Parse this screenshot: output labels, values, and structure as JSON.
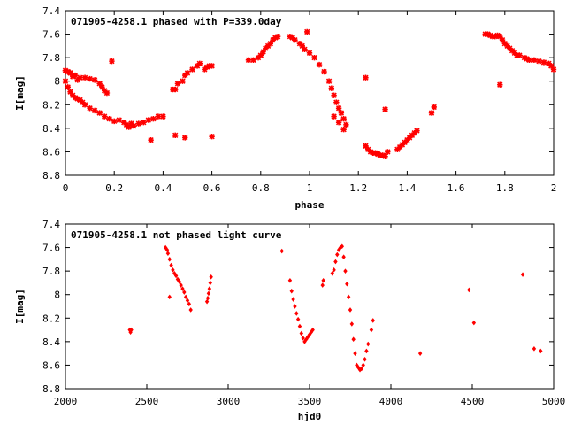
{
  "chart_data": [
    {
      "type": "scatter",
      "title": "071905-4258.1 phased with P=339.0day",
      "xlabel": "phase",
      "ylabel": "I[mag]",
      "xlim": [
        0,
        2
      ],
      "ylim": [
        8.8,
        7.4
      ],
      "xticks": [
        0,
        0.2,
        0.4,
        0.6,
        0.8,
        1,
        1.2,
        1.4,
        1.6,
        1.8,
        2
      ],
      "xtick_labels": [
        "0",
        "0.2",
        "0.4",
        "0.6",
        "0.8",
        "1",
        "1.2",
        "1.4",
        "1.6",
        "1.8",
        "2"
      ],
      "yticks": [
        7.4,
        7.6,
        7.8,
        8,
        8.2,
        8.4,
        8.6,
        8.8
      ],
      "ytick_labels": [
        "7.4",
        "7.6",
        "7.8",
        "8",
        "8.2",
        "8.4",
        "8.6",
        "8.8"
      ],
      "marker": "star",
      "color": "#ff0000",
      "x": [
        0.0,
        0.01,
        0.02,
        0.04,
        0.06,
        0.08,
        0.1,
        0.12,
        0.14,
        0.15,
        0.16,
        0.17,
        0.0,
        0.01,
        0.02,
        0.03,
        0.04,
        0.05,
        0.06,
        0.07,
        0.08,
        0.1,
        0.12,
        0.14,
        0.16,
        0.18,
        0.2,
        0.22,
        0.24,
        0.25,
        0.27,
        0.28,
        0.3,
        0.32,
        0.34,
        0.36,
        0.38,
        0.4,
        0.0,
        0.01,
        0.02,
        0.03,
        0.05,
        0.26,
        0.35,
        0.44,
        0.45,
        0.46,
        0.48,
        0.49,
        0.5,
        0.52,
        0.54,
        0.55,
        0.57,
        0.58,
        0.59,
        0.6,
        0.19,
        0.45,
        0.49,
        0.6,
        0.75,
        0.77,
        0.79,
        0.8,
        0.81,
        0.82,
        0.83,
        0.84,
        0.85,
        0.86,
        0.87,
        0.92,
        0.93,
        0.94,
        0.96,
        0.97,
        0.98,
        1.0,
        1.02,
        1.04,
        1.06,
        1.08,
        1.09,
        1.1,
        1.11,
        1.12,
        1.13,
        1.14,
        1.15,
        0.99,
        1.1,
        1.12,
        1.14,
        1.23,
        1.24,
        1.25,
        1.26,
        1.27,
        1.28,
        1.29,
        1.3,
        1.31,
        1.32,
        1.23,
        1.31,
        1.36,
        1.37,
        1.38,
        1.39,
        1.4,
        1.41,
        1.42,
        1.43,
        1.44,
        1.5,
        1.51,
        1.72,
        1.73,
        1.74,
        1.75,
        1.76,
        1.77,
        1.78,
        1.79,
        1.8,
        1.81,
        1.82,
        1.83,
        1.84,
        1.85,
        1.86,
        1.88,
        1.89,
        1.9,
        1.92,
        1.94,
        1.96,
        1.98,
        1.99,
        2.0,
        1.78
      ],
      "y": [
        7.91,
        7.92,
        7.93,
        7.95,
        7.97,
        7.97,
        7.98,
        7.99,
        8.02,
        8.05,
        8.08,
        8.1,
        8.0,
        8.05,
        8.09,
        8.12,
        8.14,
        8.15,
        8.16,
        8.18,
        8.2,
        8.23,
        8.25,
        8.27,
        8.3,
        8.32,
        8.34,
        8.33,
        8.35,
        8.37,
        8.36,
        8.38,
        8.36,
        8.35,
        8.33,
        8.32,
        8.3,
        8.3,
        7.91,
        7.92,
        7.93,
        7.96,
        7.99,
        8.39,
        8.5,
        8.07,
        8.07,
        8.02,
        8.0,
        7.95,
        7.93,
        7.9,
        7.87,
        7.85,
        7.9,
        7.88,
        7.87,
        7.87,
        7.83,
        8.46,
        8.48,
        8.47,
        7.82,
        7.82,
        7.8,
        7.78,
        7.75,
        7.72,
        7.7,
        7.68,
        7.65,
        7.63,
        7.62,
        7.62,
        7.63,
        7.65,
        7.68,
        7.7,
        7.73,
        7.76,
        7.8,
        7.86,
        7.92,
        8.0,
        8.06,
        8.12,
        8.18,
        8.23,
        8.27,
        8.32,
        8.37,
        7.58,
        8.3,
        8.35,
        8.41,
        8.55,
        8.58,
        8.6,
        8.61,
        8.61,
        8.62,
        8.63,
        8.63,
        8.64,
        8.6,
        7.97,
        8.24,
        8.58,
        8.56,
        8.54,
        8.52,
        8.5,
        8.48,
        8.46,
        8.44,
        8.42,
        8.27,
        8.22,
        7.6,
        7.6,
        7.61,
        7.62,
        7.62,
        7.61,
        7.62,
        7.65,
        7.68,
        7.7,
        7.72,
        7.74,
        7.76,
        7.78,
        7.78,
        7.8,
        7.81,
        7.82,
        7.82,
        7.83,
        7.84,
        7.85,
        7.87,
        7.9,
        8.03
      ],
      "data_names": {
        "point": "phased-data-point"
      }
    },
    {
      "type": "scatter",
      "title": "071905-4258.1 not phased light curve",
      "xlabel": "hjd0",
      "ylabel": "I[mag]",
      "xlim": [
        2000,
        5000
      ],
      "ylim": [
        8.8,
        7.4
      ],
      "xticks": [
        2000,
        2500,
        3000,
        3500,
        4000,
        4500,
        5000
      ],
      "xtick_labels": [
        "2000",
        "2500",
        "3000",
        "3500",
        "4000",
        "4500",
        "5000"
      ],
      "yticks": [
        7.4,
        7.6,
        7.8,
        8,
        8.2,
        8.4,
        8.6,
        8.8
      ],
      "ytick_labels": [
        "7.4",
        "7.6",
        "7.8",
        "8",
        "8.2",
        "8.4",
        "8.6",
        "8.8"
      ],
      "marker": "diamond",
      "color": "#ff0000",
      "x": [
        2395,
        2400,
        2405,
        2615,
        2625,
        2630,
        2640,
        2650,
        2660,
        2670,
        2680,
        2690,
        2700,
        2710,
        2720,
        2730,
        2740,
        2750,
        2760,
        2770,
        2640,
        2870,
        2875,
        2880,
        2885,
        2890,
        2895,
        3330,
        3380,
        3390,
        3400,
        3410,
        3420,
        3430,
        3440,
        3450,
        3460,
        3470,
        3480,
        3490,
        3500,
        3510,
        3520,
        3580,
        3585,
        3640,
        3650,
        3660,
        3670,
        3680,
        3690,
        3700,
        3710,
        3720,
        3730,
        3740,
        3750,
        3760,
        3770,
        3780,
        3790,
        3800,
        3810,
        3820,
        3830,
        3840,
        3850,
        3860,
        3880,
        3890,
        4180,
        4480,
        4510,
        4810,
        4880,
        4920
      ],
      "y": [
        8.3,
        8.32,
        8.3,
        7.6,
        7.62,
        7.65,
        7.7,
        7.75,
        7.79,
        7.82,
        7.84,
        7.87,
        7.89,
        7.92,
        7.95,
        7.98,
        8.02,
        8.05,
        8.08,
        8.13,
        8.02,
        8.06,
        8.03,
        7.99,
        7.95,
        7.9,
        7.85,
        7.63,
        7.88,
        7.97,
        8.04,
        8.1,
        8.16,
        8.21,
        8.27,
        8.33,
        8.37,
        8.4,
        8.38,
        8.36,
        8.34,
        8.32,
        8.3,
        7.92,
        7.88,
        7.82,
        7.79,
        7.72,
        7.66,
        7.62,
        7.6,
        7.59,
        7.68,
        7.8,
        7.91,
        8.02,
        8.13,
        8.25,
        8.38,
        8.5,
        8.6,
        8.62,
        8.64,
        8.63,
        8.6,
        8.55,
        8.48,
        8.42,
        8.3,
        8.22,
        8.5,
        7.96,
        8.24,
        7.83,
        8.46,
        8.48
      ],
      "data_names": {
        "point": "unphased-data-point"
      }
    }
  ]
}
